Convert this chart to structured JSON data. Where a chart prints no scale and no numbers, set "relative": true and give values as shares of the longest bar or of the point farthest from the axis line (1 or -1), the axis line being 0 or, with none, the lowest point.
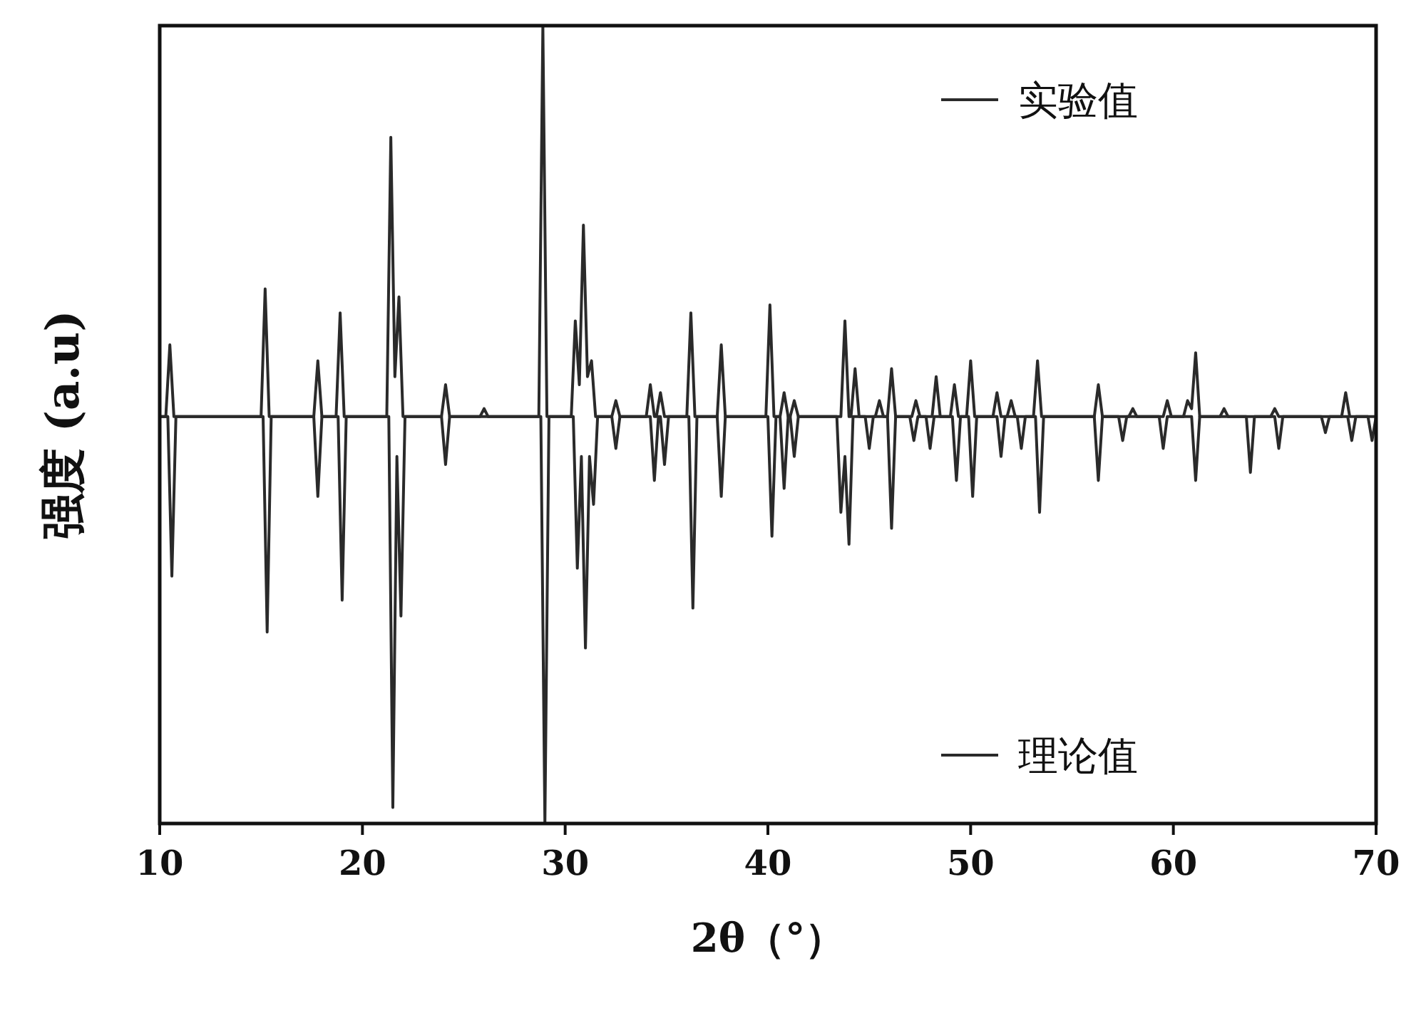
{
  "chart_data": {
    "type": "line",
    "relative": true,
    "xlabel": "2θ（°）",
    "ylabel": "强度 (a.u)",
    "xlim": [
      10,
      70
    ],
    "xticks": [
      10,
      20,
      30,
      40,
      50,
      60,
      70
    ],
    "legend": "right",
    "series": [
      {
        "name": "实验值",
        "color": "#2a2a2a",
        "x": [
          10,
          10.3,
          10.5,
          10.7,
          15.0,
          15.2,
          15.4,
          17.6,
          17.8,
          18.0,
          18.7,
          18.9,
          19.1,
          21.2,
          21.4,
          21.6,
          21.8,
          22.0,
          23.9,
          24.1,
          24.3,
          25.8,
          26,
          26.2,
          28.7,
          28.9,
          29.1,
          30.3,
          30.5,
          30.7,
          30.9,
          31.1,
          31.3,
          31.5,
          32.3,
          32.5,
          32.7,
          34.0,
          34.2,
          34.4,
          34.5,
          34.7,
          34.9,
          36.0,
          36.2,
          36.4,
          37.5,
          37.7,
          37.9,
          39.9,
          40.1,
          40.3,
          40.6,
          40.8,
          41.0,
          41.1,
          41.3,
          41.5,
          43.6,
          43.8,
          44.0,
          44.1,
          44.3,
          44.5,
          45.3,
          45.5,
          45.7,
          45.9,
          46.1,
          46.3,
          47.1,
          47.3,
          47.5,
          48.1,
          48.3,
          48.5,
          49.0,
          49.2,
          49.4,
          49.8,
          50,
          50.2,
          51.1,
          51.3,
          51.5,
          51.8,
          52,
          52.2,
          53.1,
          53.3,
          53.5,
          56.1,
          56.3,
          56.5,
          57.8,
          58,
          58.2,
          59.5,
          59.7,
          59.9,
          60.5,
          60.7,
          60.9,
          61.1,
          61.3,
          62.3,
          62.5,
          62.7,
          64.8,
          65,
          65.2,
          68.3,
          68.5,
          68.7,
          70
        ],
        "values": [
          0.51,
          0.51,
          0.6,
          0.51,
          0.51,
          0.67,
          0.51,
          0.51,
          0.58,
          0.51,
          0.51,
          0.64,
          0.51,
          0.51,
          0.86,
          0.56,
          0.66,
          0.51,
          0.51,
          0.55,
          0.51,
          0.51,
          0.52,
          0.51,
          0.51,
          1.0,
          0.51,
          0.51,
          0.63,
          0.55,
          0.75,
          0.56,
          0.58,
          0.51,
          0.51,
          0.53,
          0.51,
          0.51,
          0.55,
          0.51,
          0.51,
          0.54,
          0.51,
          0.51,
          0.64,
          0.51,
          0.51,
          0.6,
          0.51,
          0.51,
          0.65,
          0.51,
          0.51,
          0.54,
          0.51,
          0.51,
          0.53,
          0.51,
          0.51,
          0.63,
          0.51,
          0.51,
          0.57,
          0.51,
          0.51,
          0.53,
          0.51,
          0.51,
          0.57,
          0.51,
          0.51,
          0.53,
          0.51,
          0.51,
          0.56,
          0.51,
          0.51,
          0.55,
          0.51,
          0.51,
          0.58,
          0.51,
          0.51,
          0.54,
          0.51,
          0.51,
          0.53,
          0.51,
          0.51,
          0.58,
          0.51,
          0.51,
          0.55,
          0.51,
          0.51,
          0.52,
          0.51,
          0.51,
          0.53,
          0.51,
          0.51,
          0.53,
          0.52,
          0.59,
          0.51,
          0.51,
          0.52,
          0.51,
          0.51,
          0.52,
          0.51,
          0.51,
          0.54,
          0.51,
          0.51
        ]
      },
      {
        "name": "理论值",
        "color": "#2a2a2a",
        "x": [
          10,
          10.4,
          10.6,
          10.8,
          15.1,
          15.3,
          15.5,
          17.6,
          17.8,
          18.0,
          18.8,
          19.0,
          19.2,
          21.3,
          21.5,
          21.7,
          21.9,
          22.1,
          23.9,
          24.1,
          24.3,
          28.8,
          29.0,
          29.2,
          30.4,
          30.6,
          30.8,
          31.0,
          31.2,
          31.4,
          31.6,
          32.3,
          32.5,
          32.7,
          34.2,
          34.4,
          34.6,
          34.7,
          34.9,
          35.1,
          36.1,
          36.3,
          36.5,
          37.5,
          37.7,
          37.9,
          40.0,
          40.2,
          40.4,
          40.6,
          40.8,
          41.0,
          41.1,
          41.3,
          41.5,
          43.4,
          43.6,
          43.8,
          44.0,
          44.2,
          44.8,
          45,
          45.2,
          45.9,
          46.1,
          46.3,
          47.0,
          47.2,
          47.4,
          47.8,
          48.0,
          48.2,
          49.1,
          49.3,
          49.5,
          49.9,
          50.1,
          50.3,
          51.3,
          51.5,
          51.7,
          52.3,
          52.5,
          52.7,
          53.2,
          53.4,
          53.6,
          56.1,
          56.3,
          56.5,
          57.3,
          57.5,
          57.7,
          59.3,
          59.5,
          59.7,
          60.9,
          61.1,
          61.3,
          63.6,
          63.8,
          64.0,
          65.0,
          65.2,
          65.4,
          67.3,
          67.5,
          67.7,
          68.6,
          68.8,
          69.0,
          69.6,
          69.8,
          70
        ],
        "values": [
          0.51,
          0.51,
          0.31,
          0.51,
          0.51,
          0.24,
          0.51,
          0.51,
          0.41,
          0.51,
          0.51,
          0.28,
          0.51,
          0.51,
          0.02,
          0.46,
          0.26,
          0.51,
          0.51,
          0.45,
          0.51,
          0.51,
          0,
          0.51,
          0.51,
          0.32,
          0.46,
          0.22,
          0.46,
          0.4,
          0.51,
          0.51,
          0.47,
          0.51,
          0.51,
          0.43,
          0.51,
          0.51,
          0.45,
          0.51,
          0.51,
          0.27,
          0.51,
          0.51,
          0.41,
          0.51,
          0.51,
          0.36,
          0.51,
          0.51,
          0.42,
          0.51,
          0.51,
          0.46,
          0.51,
          0.51,
          0.39,
          0.46,
          0.35,
          0.51,
          0.51,
          0.47,
          0.51,
          0.51,
          0.37,
          0.51,
          0.51,
          0.48,
          0.51,
          0.51,
          0.47,
          0.51,
          0.51,
          0.43,
          0.51,
          0.51,
          0.41,
          0.51,
          0.51,
          0.46,
          0.51,
          0.51,
          0.47,
          0.51,
          0.51,
          0.39,
          0.51,
          0.51,
          0.43,
          0.51,
          0.51,
          0.48,
          0.51,
          0.51,
          0.47,
          0.51,
          0.51,
          0.43,
          0.51,
          0.51,
          0.44,
          0.51,
          0.51,
          0.47,
          0.51,
          0.51,
          0.49,
          0.51,
          0.51,
          0.48,
          0.51,
          0.51,
          0.48,
          0.51
        ]
      }
    ]
  }
}
